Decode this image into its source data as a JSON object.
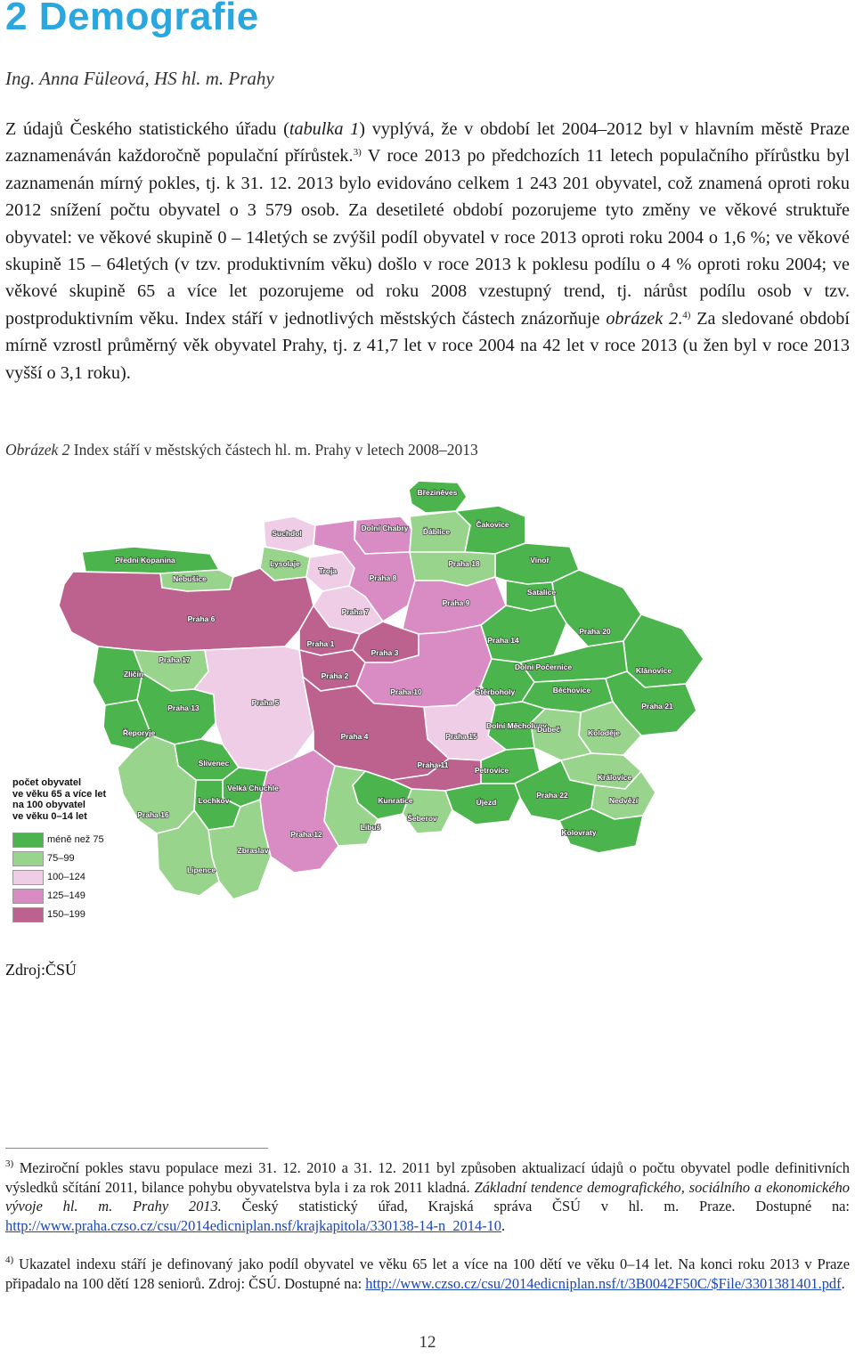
{
  "heading": "2 Demografie",
  "author": "Ing. Anna Füleová, HS hl. m. Prahy",
  "paragraph": {
    "p1": "Z údajů Českého statistického úřadu (",
    "p1_italic": "tabulka 1",
    "p2": ") vyplývá, že v období let 2004–2012 byl v hlavním městě Praze zaznamenáván každoročně populační přírůstek.",
    "sup1": "3)",
    "p3": " V roce 2013 po předchozích 11 letech populačního přírůstku byl zaznamenán mírný pokles, tj. k 31. 12. 2013 bylo evidováno celkem 1 243 201 obyvatel, což znamená oproti roku 2012 snížení počtu obyvatel o 3 579 osob. Za desetileté období pozorujeme tyto změny ve věkové struktuře obyvatel: ve věkové skupině 0 – 14letých se zvýšil podíl obyvatel v roce 2013 oproti roku 2004 o 1,6 %; ve věkové skupině 15 – 64letých (v tzv. produktivním věku) došlo v roce 2013 k poklesu podílu o 4 % oproti roku 2004; ve věkové skupině 65 a více let pozorujeme od roku 2008 vzestupný trend, tj. nárůst podílu osob v tzv. postproduktivním věku. Index stáří v jednotlivých městských částech znázorňuje ",
    "p3_italic": "obrázek 2",
    "p4": ".",
    "sup2": "4)",
    "p5": " Za sledované období mírně vzrostl průměrný věk obyvatel Prahy, tj. z 41,7 let v roce 2004 na 42 let v roce 2013 (u žen byl v roce 2013 vyšší o 3,1 roku)."
  },
  "caption": {
    "italic": "Obrázek 2",
    "text": " Index stáří v městských částech hl. m. Prahy v letech 2008–2013"
  },
  "map": {
    "colors": {
      "c1": "#4cb44c",
      "c2": "#99d48d",
      "c3": "#f0cde6",
      "c4": "#d98cc4",
      "c5": "#bd628f"
    },
    "labels": [
      "Březiněves",
      "Suchdol",
      "Dolní Chabry",
      "Ďáblice",
      "Čakovice",
      "Přední Kopanina",
      "Lysolaje",
      "Praha 18",
      "Vinoř",
      "Nebušice",
      "Troja",
      "Praha 8",
      "Praha 9",
      "Satalice",
      "Praha 6",
      "Praha 7",
      "Praha 14",
      "Praha 20",
      "Praha 1",
      "Praha 3",
      "Zličín",
      "Praha 17",
      "Praha 2",
      "Dolní Počernice",
      "Klánovice",
      "Praha 10",
      "Štěrboholy",
      "Běchovice",
      "Praha 13",
      "Praha 5",
      "Dolní Měcholupy",
      "Dubeč",
      "Praha 21",
      "Řeporyje",
      "Praha 4",
      "Praha 15",
      "Koloděje",
      "Slivenec",
      "Praha 11",
      "Petrovice",
      "Královice",
      "Velká Chuchle",
      "Lochkov",
      "Kunratice",
      "Újezd",
      "Praha 22",
      "Nedvězí",
      "Šeberov",
      "Kolovraty",
      "Praha 12",
      "Libuš",
      "Zbraslav",
      "Lipence",
      "Praha 16"
    ]
  },
  "legend": {
    "title_lines": [
      "počet obyvatel",
      "ve věku 65 a více let",
      "na 100 obyvatel",
      "ve věku 0–14 let"
    ],
    "ranges": [
      "méně než 75",
      "75–99",
      "100–124",
      "125–149",
      "150–199"
    ]
  },
  "source": "Zdroj:ČSÚ",
  "footnote3": {
    "sup": "3)",
    "t1": " Meziroční pokles stavu populace mezi 31. 12. 2010 a 31. 12. 2011 byl způsoben aktualizací údajů o počtu obyvatel podle definitivních výsledků sčítání 2011, bilance pohybu obyvatelstva byla i za rok 2011 kladná. ",
    "italic": "Základní tendence demografického, sociálního a ekonomického vývoje hl. m. Prahy 2013.",
    "t2": " Český statistický úřad, Krajská správa ČSÚ v hl. m. Praze. Dostupné na: ",
    "link": "http://www.praha.czso.cz/csu/2014edicniplan.nsf/krajkapitola/330138-14-n_2014-10",
    "t3": "."
  },
  "footnote4": {
    "sup": "4)",
    "t1": " Ukazatel indexu stáří je definovaný jako podíl obyvatel ve věku 65 let a více na 100 dětí ve věku 0–14 let. Na konci roku 2013 v Praze připadalo na 100 dětí 128 seniorů. Zdroj: ČSÚ. Dostupné na: ",
    "link": "http://www.czso.cz/csu/2014edicniplan.nsf/t/3B0042F50C/$File/3301381401.pdf",
    "t2": "."
  },
  "page_number": "12"
}
